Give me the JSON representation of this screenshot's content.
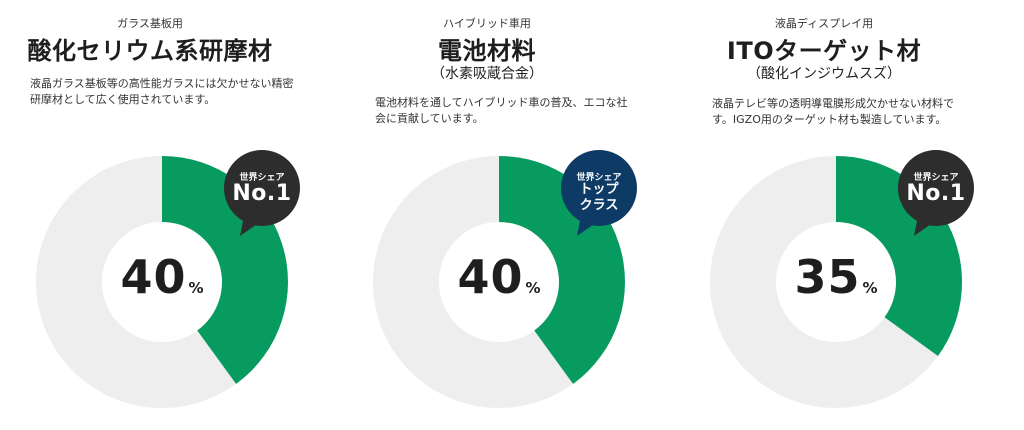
{
  "colors": {
    "accent": "#089b5f",
    "remainder": "#eeeeee",
    "badge_dark": "#2d2d2d",
    "badge_navy": "#0e3a66"
  },
  "panels": [
    {
      "category": "ガラス基板用",
      "title": "酸化セリウム系研摩材",
      "subtitle": "",
      "description": "液晶ガラス基板等の高性能ガラスには欠かせない精密研摩材として広く使用されています。",
      "badge": {
        "top": "世界シェア",
        "lines": [
          "No.1"
        ],
        "color": "#2d2d2d"
      },
      "value_num": "40",
      "value_unit": "%"
    },
    {
      "category": "ハイブリッド車用",
      "title": "電池材料",
      "subtitle": "（水素吸蔵合金）",
      "description": "電池材料を通してハイブリッド車の普及、エコな社会に貢献しています。",
      "badge": {
        "top": "世界シェア",
        "lines": [
          "トップ",
          "クラス"
        ],
        "color": "#0e3a66"
      },
      "value_num": "40",
      "value_unit": "%"
    },
    {
      "category": "液晶ディスプレイ用",
      "title": "ITOターゲット材",
      "subtitle": "（酸化インジウムスズ）",
      "description": "液晶テレビ等の透明導電膜形成欠かせない材料です。IGZO用のターゲット材も製造しています。",
      "badge": {
        "top": "世界シェア",
        "lines": [
          "No.1"
        ],
        "color": "#2d2d2d"
      },
      "value_num": "35",
      "value_unit": "%"
    }
  ],
  "chart_data": [
    {
      "type": "pie",
      "title": "酸化セリウム系研摩材",
      "values": [
        40,
        60
      ],
      "unit": "%"
    },
    {
      "type": "pie",
      "title": "電池材料",
      "values": [
        40,
        60
      ],
      "unit": "%"
    },
    {
      "type": "pie",
      "title": "ITOターゲット材",
      "values": [
        35,
        65
      ],
      "unit": "%"
    }
  ]
}
